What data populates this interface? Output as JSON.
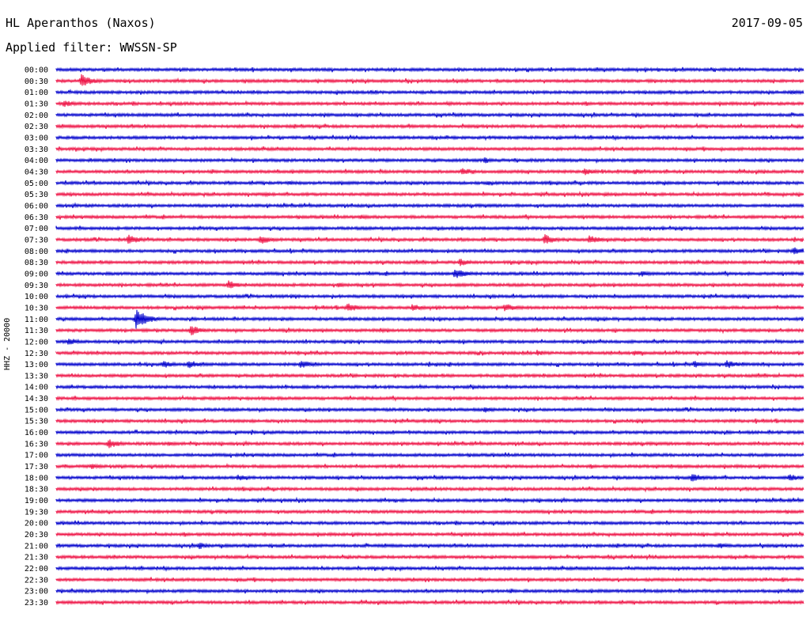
{
  "header": {
    "station": "HL Aperanthos (Naxos)",
    "date": "2017-09-05",
    "filter_label": "Applied filter: WWSSN-SP",
    "channel": "HHZ - 20000"
  },
  "colors": {
    "odd_trace": "#0000cc",
    "even_trace": "#ee1144",
    "text": "#000000"
  },
  "chart_data": {
    "type": "line",
    "title": "HL Aperanthos (Naxos)",
    "subtitle": "Applied filter: WWSSN-SP",
    "ylabel": "HHZ - 20000",
    "xlabel": "",
    "grid": false,
    "row_labels": [
      "00:00",
      "00:30",
      "01:00",
      "01:30",
      "02:00",
      "02:30",
      "03:00",
      "03:30",
      "04:00",
      "04:30",
      "05:00",
      "05:30",
      "06:00",
      "06:30",
      "07:00",
      "07:30",
      "08:00",
      "08:30",
      "09:00",
      "09:30",
      "10:00",
      "10:30",
      "11:00",
      "11:30",
      "12:00",
      "12:30",
      "13:00",
      "13:30",
      "14:00",
      "14:30",
      "15:00",
      "15:30",
      "16:00",
      "16:30",
      "17:00",
      "17:30",
      "18:00",
      "18:30",
      "19:00",
      "19:30",
      "20:00",
      "20:30",
      "21:00",
      "21:30",
      "22:00",
      "22:30",
      "23:00",
      "23:30"
    ],
    "row_minutes": 30,
    "events": [
      {
        "row": "00:30",
        "minute": 1.0,
        "amp": 9
      },
      {
        "row": "01:00",
        "minute": 29.5,
        "amp": 3
      },
      {
        "row": "01:30",
        "minute": 0.3,
        "amp": 5
      },
      {
        "row": "01:30",
        "minute": 15.7,
        "amp": 3
      },
      {
        "row": "04:00",
        "minute": 17.2,
        "amp": 4
      },
      {
        "row": "04:30",
        "minute": 16.3,
        "amp": 5
      },
      {
        "row": "04:30",
        "minute": 21.2,
        "amp": 5
      },
      {
        "row": "04:30",
        "minute": 23.2,
        "amp": 4
      },
      {
        "row": "05:00",
        "minute": 9.3,
        "amp": 3
      },
      {
        "row": "05:00",
        "minute": 17.3,
        "amp": 3
      },
      {
        "row": "05:30",
        "minute": 8.4,
        "amp": 3
      },
      {
        "row": "05:30",
        "minute": 22.0,
        "amp": 3
      },
      {
        "row": "06:30",
        "minute": 12.2,
        "amp": 3
      },
      {
        "row": "07:30",
        "minute": 2.9,
        "amp": 7
      },
      {
        "row": "07:30",
        "minute": 8.2,
        "amp": 6
      },
      {
        "row": "07:30",
        "minute": 19.6,
        "amp": 7
      },
      {
        "row": "07:30",
        "minute": 21.4,
        "amp": 6
      },
      {
        "row": "07:30",
        "minute": 23.5,
        "amp": 3
      },
      {
        "row": "08:00",
        "minute": 29.6,
        "amp": 5
      },
      {
        "row": "08:30",
        "minute": 16.2,
        "amp": 5
      },
      {
        "row": "08:30",
        "minute": 29.8,
        "amp": 4
      },
      {
        "row": "09:00",
        "minute": 16.0,
        "amp": 7
      },
      {
        "row": "09:00",
        "minute": 23.5,
        "amp": 4
      },
      {
        "row": "09:30",
        "minute": 6.9,
        "amp": 6
      },
      {
        "row": "09:30",
        "minute": 11.3,
        "amp": 4
      },
      {
        "row": "10:30",
        "minute": 11.7,
        "amp": 6
      },
      {
        "row": "10:30",
        "minute": 14.3,
        "amp": 5
      },
      {
        "row": "10:30",
        "minute": 18.0,
        "amp": 6
      },
      {
        "row": "11:00",
        "minute": 3.2,
        "amp": 13
      },
      {
        "row": "11:30",
        "minute": 5.4,
        "amp": 7
      },
      {
        "row": "11:30",
        "minute": 13.0,
        "amp": 3
      },
      {
        "row": "12:00",
        "minute": 0.5,
        "amp": 5
      },
      {
        "row": "12:30",
        "minute": 19.3,
        "amp": 4
      },
      {
        "row": "12:30",
        "minute": 23.2,
        "amp": 4
      },
      {
        "row": "13:00",
        "minute": 4.3,
        "amp": 5
      },
      {
        "row": "13:00",
        "minute": 5.3,
        "amp": 6
      },
      {
        "row": "13:00",
        "minute": 9.8,
        "amp": 6
      },
      {
        "row": "13:00",
        "minute": 25.6,
        "amp": 5
      },
      {
        "row": "13:00",
        "minute": 26.9,
        "amp": 6
      },
      {
        "row": "15:00",
        "minute": 17.2,
        "amp": 4
      },
      {
        "row": "16:30",
        "minute": 2.1,
        "amp": 6
      },
      {
        "row": "16:30",
        "minute": 4.5,
        "amp": 3
      },
      {
        "row": "17:30",
        "minute": 1.4,
        "amp": 4
      },
      {
        "row": "18:00",
        "minute": 7.3,
        "amp": 4
      },
      {
        "row": "18:00",
        "minute": 25.5,
        "amp": 6
      },
      {
        "row": "18:00",
        "minute": 29.4,
        "amp": 5
      },
      {
        "row": "21:00",
        "minute": 5.7,
        "amp": 5
      },
      {
        "row": "21:00",
        "minute": 26.6,
        "amp": 4
      },
      {
        "row": "22:30",
        "minute": 17.0,
        "amp": 3
      }
    ]
  }
}
